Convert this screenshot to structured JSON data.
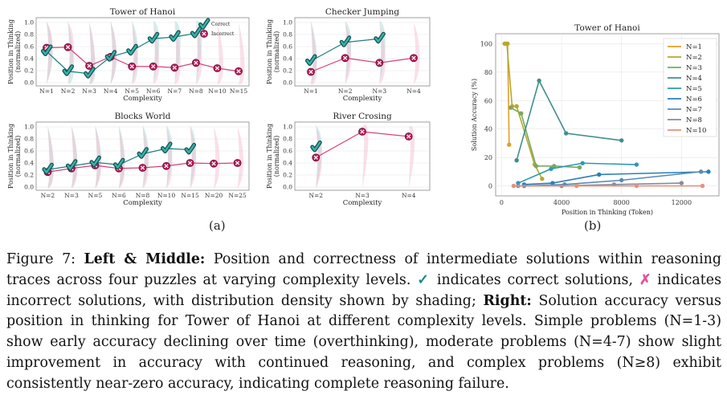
{
  "colors": {
    "correct": "#1f7f7f",
    "incorrect": "#d8407a",
    "shade_teal": "#a8ddd6",
    "shade_pink": "#f4b8cf"
  },
  "panel_labels": [
    "(a)",
    "(b)"
  ],
  "chart_data": [
    {
      "type": "line",
      "title": "Tower of Hanoi",
      "xlabel": "Complexity",
      "ylabel": "Position in Thinking (normalized)",
      "ylim": [
        0,
        1.0
      ],
      "yticks": [
        "0.0",
        "0.2",
        "0.4",
        "0.6",
        "0.8",
        "1.0"
      ],
      "categories": [
        "N=1",
        "N=2",
        "N=3",
        "N=4",
        "N=5",
        "N=6",
        "N=7",
        "N=8",
        "N=10",
        "N=15"
      ],
      "legend": {
        "placement": "top-right",
        "entries": [
          "Correct",
          "Incorrect"
        ]
      },
      "series": [
        {
          "name": "Correct",
          "values": [
            0.52,
            0.19,
            0.15,
            0.43,
            0.53,
            0.73,
            0.76,
            0.82,
            null,
            null
          ]
        },
        {
          "name": "Incorrect",
          "values": [
            0.58,
            0.59,
            0.28,
            0.43,
            0.27,
            0.27,
            0.25,
            0.33,
            0.24,
            0.19
          ]
        }
      ]
    },
    {
      "type": "line",
      "title": "Checker Jumping",
      "xlabel": "Complexity",
      "ylabel": "Position in Thinking (normalized)",
      "ylim": [
        0,
        1.0
      ],
      "yticks": [
        "0.0",
        "0.2",
        "0.4",
        "0.6",
        "0.8",
        "1.0"
      ],
      "categories": [
        "N=1",
        "N=2",
        "N=3",
        "N=4"
      ],
      "series": [
        {
          "name": "Correct",
          "values": [
            0.36,
            0.67,
            0.73,
            null
          ]
        },
        {
          "name": "Incorrect",
          "values": [
            0.18,
            0.41,
            0.33,
            0.41
          ]
        }
      ]
    },
    {
      "type": "line",
      "title": "Blocks World",
      "xlabel": "Complexity",
      "ylabel": "Position in Thinking (normalized)",
      "ylim": [
        0,
        1.0
      ],
      "yticks": [
        "0.0",
        "0.2",
        "0.4",
        "0.6",
        "0.8",
        "1.0"
      ],
      "categories": [
        "N=2",
        "N=3",
        "N=5",
        "N=6",
        "N=8",
        "N=10",
        "N=15",
        "N=20",
        "N=25"
      ],
      "series": [
        {
          "name": "Correct",
          "values": [
            0.29,
            0.35,
            0.41,
            0.37,
            0.55,
            0.64,
            0.62,
            null,
            null
          ]
        },
        {
          "name": "Incorrect",
          "values": [
            0.25,
            0.31,
            0.36,
            0.31,
            0.32,
            0.35,
            0.4,
            0.39,
            0.4
          ]
        }
      ]
    },
    {
      "type": "line",
      "title": "River Crosing",
      "xlabel": "Complexity",
      "ylabel": "Position in Thinking (normalized)",
      "ylim": [
        0,
        1.0
      ],
      "yticks": [
        "0.0",
        "0.2",
        "0.4",
        "0.6",
        "0.8",
        "1.0"
      ],
      "categories": [
        "N=2",
        "N=3",
        "N=4"
      ],
      "series": [
        {
          "name": "Correct",
          "values": [
            0.66,
            null,
            null
          ]
        },
        {
          "name": "Incorrect",
          "values": [
            0.49,
            0.92,
            0.84
          ]
        }
      ]
    },
    {
      "type": "line",
      "title": "Tower of Hanoi",
      "xlabel": "Position in Thinking (Token)",
      "ylabel": "Solution Accuracy (%)",
      "xlim": [
        -400,
        14500
      ],
      "ylim": [
        -7,
        107
      ],
      "xticks": [
        0,
        4000,
        8000,
        12000
      ],
      "yticks": [
        0,
        20,
        40,
        60,
        80,
        100
      ],
      "legend": {
        "placement": "top-right"
      },
      "series": [
        {
          "name": "N=1",
          "color": "#e0a02a",
          "points": [
            [
              300,
              100
            ],
            [
              400,
              100
            ],
            [
              500,
              29
            ]
          ]
        },
        {
          "name": "N=2",
          "color": "#b5a830",
          "points": [
            [
              200,
              100
            ],
            [
              350,
              100
            ],
            [
              700,
              56
            ],
            [
              1000,
              56
            ],
            [
              2200,
              15
            ],
            [
              2700,
              5
            ]
          ]
        },
        {
          "name": "N=3",
          "color": "#7aa860",
          "points": [
            [
              600,
              55
            ],
            [
              1300,
              51
            ],
            [
              2300,
              14
            ],
            [
              3500,
              14
            ],
            [
              5200,
              13
            ]
          ]
        },
        {
          "name": "N=4",
          "color": "#3f8f8a",
          "points": [
            [
              1000,
              18
            ],
            [
              2500,
              74
            ],
            [
              4300,
              37
            ],
            [
              8000,
              32
            ]
          ]
        },
        {
          "name": "N=5",
          "color": "#2e9ab5",
          "points": [
            [
              1100,
              2
            ],
            [
              3300,
              12
            ],
            [
              5400,
              16
            ],
            [
              9000,
              15
            ]
          ]
        },
        {
          "name": "N=6",
          "color": "#2a7fb8",
          "points": [
            [
              1500,
              1
            ],
            [
              3400,
              2
            ],
            [
              6500,
              8
            ],
            [
              13800,
              10
            ]
          ]
        },
        {
          "name": "N=7",
          "color": "#5a8ab5",
          "points": [
            [
              1500,
              0
            ],
            [
              4200,
              1
            ],
            [
              8000,
              4
            ],
            [
              13300,
              10
            ]
          ]
        },
        {
          "name": "N=8",
          "color": "#8a8aa0",
          "points": [
            [
              1100,
              0
            ],
            [
              4000,
              0
            ],
            [
              7500,
              1
            ],
            [
              12000,
              2
            ]
          ]
        },
        {
          "name": "N=10",
          "color": "#e8907a",
          "points": [
            [
              800,
              0
            ],
            [
              5000,
              0
            ],
            [
              9000,
              0
            ],
            [
              13400,
              0
            ]
          ]
        }
      ]
    }
  ],
  "caption": {
    "figure_label": "Figure 7:",
    "left_middle_label": "Left & Middle:",
    "text1": " Position and correctness of intermediate solutions within reasoning traces across four puzzles at varying complexity levels. ",
    "check_symbol": "✓",
    "text2": " indicates correct solutions, ",
    "cross_symbol": "✗",
    "text3": " indicates incorrect solutions, with distribution density shown by shading; ",
    "right_label": "Right:",
    "text4": " Solution accuracy versus position in thinking for Tower of Hanoi at different complexity levels. Simple problems (N=1-3) show early accuracy declining over time (overthinking), moderate problems (N=4-7) show slight improvement in accuracy with continued reasoning, and complex problems (N≥8) exhibit consistently near-zero accuracy, indicating complete reasoning failure."
  }
}
